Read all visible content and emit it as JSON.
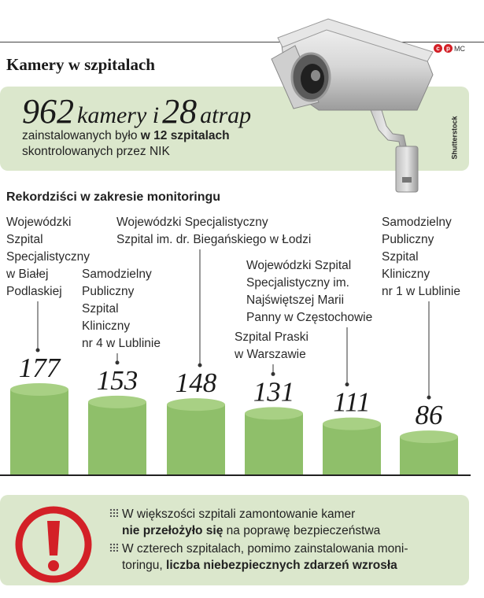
{
  "header": {
    "title": "Kamery w szpitalach",
    "brand_c": "c",
    "brand_p": "p",
    "brand_mc": "MC",
    "photo_credit": "Shutterstock"
  },
  "highlight": {
    "cameras": "962",
    "cameras_word": "kamery i",
    "dummies": "28",
    "dummies_word": "atrap",
    "line1_plain": "zainstalowanych było ",
    "line1_bold": "w 12 szpitalach",
    "line2": "skontrolowanych przez NIK"
  },
  "section_title": "Rekordziści w zakresie monitoringu",
  "chart_data": {
    "type": "bar",
    "title": "Rekordziści w zakresie monitoringu",
    "categories": [
      "Wojewódzki Szpital Specjalistyczny w Białej Podlaskiej",
      "Samodzielny Publiczny Szpital Kliniczny nr 4 w Lublinie",
      "Wojewódzki Specjalistyczny Szpital im. dr. Biegańskiego w Łodzi",
      "Szpital Praski w Warszawie",
      "Wojewódzki Szpital Specjalistyczny im. Najświętszej Marii Panny w Częstochowie",
      "Samodzielny Publiczny Szpital Kliniczny nr 1 w Lublinie"
    ],
    "category_lines": [
      [
        "Wojewódzki",
        "Szpital",
        "Specjalistyczny",
        "w Białej",
        "Podlaskiej"
      ],
      [
        "Samodzielny",
        "Publiczny",
        "Szpital",
        "Kliniczny",
        "nr 4 w Lublinie"
      ],
      [
        "Wojewódzki Specjalistyczny",
        "Szpital im. dr. Biegańskiego w Łodzi"
      ],
      [
        "Szpital Praski",
        "w Warszawie"
      ],
      [
        "Wojewódzki Szpital",
        "Specjalistyczny im.",
        "Najświętszej Marii",
        "Panny w Częstochowie"
      ],
      [
        "Samodzielny",
        "Publiczny",
        "Szpital",
        "Kliniczny",
        "nr 1 w Lublinie"
      ]
    ],
    "values": [
      177,
      153,
      148,
      131,
      111,
      86
    ],
    "value_labels": [
      "177",
      "153",
      "148",
      "131",
      "111",
      "86"
    ],
    "ylim": [
      0,
      177
    ],
    "grid": false,
    "legend": "none",
    "bar_color": "#8fbf6a"
  },
  "notes": [
    {
      "line1": "W większości szpitali zamontowanie kamer",
      "line2_bold": "nie przełożyło się",
      "line2_plain": " na poprawę bezpieczeństwa"
    },
    {
      "line1": "W czterech szpitalach, pomimo zainstalowania moni-",
      "line2_plain": "toringu, ",
      "line2_bold": "liczba niebezpiecznych zdarzeń  wzrosła"
    }
  ],
  "colors": {
    "panel": "#dbe7cc",
    "bar": "#8fbf6a",
    "warning": "#d32027"
  },
  "icons": {
    "warning": "exclamation-circle-icon",
    "camera": "security-camera-icon",
    "bullet": "dot-grid-icon"
  }
}
